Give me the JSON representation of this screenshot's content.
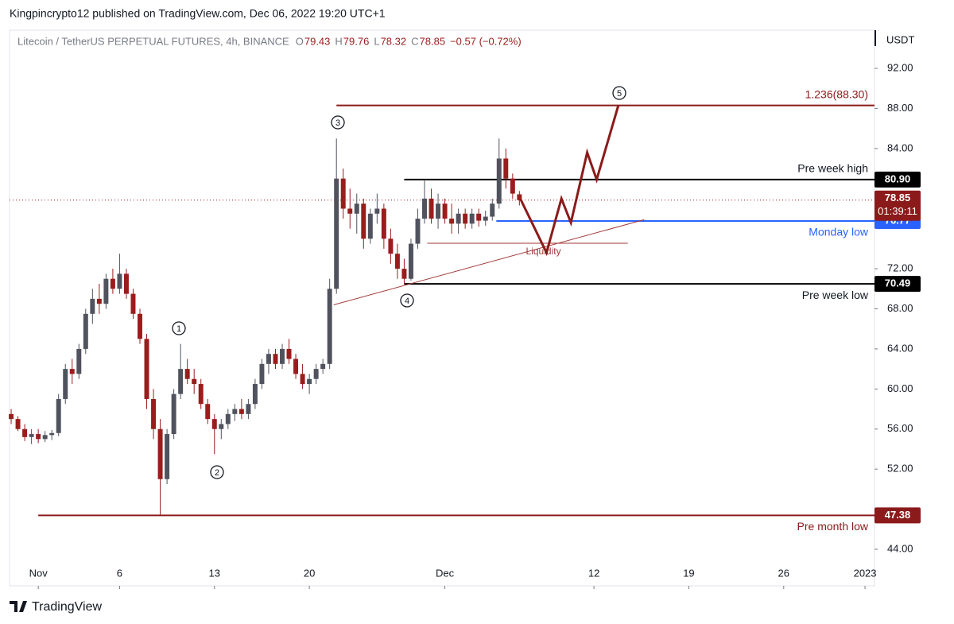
{
  "header": {
    "publisher": "Kingpincrypto12 published on TradingView.com, Dec 06, 2022 19:20 UTC+1"
  },
  "footer": {
    "brand": "TradingView"
  },
  "chart_data": {
    "type": "candlestick",
    "symbol": "Litecoin / TetherUS PERPETUAL FUTURES, 4h, BINANCE",
    "ohlc_prefixes": [
      "O",
      "H",
      "L",
      "C"
    ],
    "change": "−0.57 (−0.72%)",
    "y_axis_label": "USDT",
    "countdown": "01:39:11",
    "up_color": "#50535e",
    "down_color": "#9b1c1c",
    "x": [
      -2,
      -1.5,
      -1,
      -0.5,
      0,
      0.5,
      1,
      1.5,
      2,
      2.5,
      3,
      3.5,
      4,
      4.5,
      5,
      5.5,
      6,
      6.5,
      7,
      7.5,
      8,
      8.5,
      9,
      9.5,
      10,
      10.5,
      11,
      11.5,
      12,
      12.5,
      13,
      13.5,
      14,
      14.5,
      15,
      15.5,
      16,
      16.5,
      17,
      17.5,
      18,
      18.5,
      19,
      19.5,
      20,
      20.5,
      21,
      21.5,
      22,
      22.5,
      23,
      23.5,
      24,
      24.5,
      25,
      25.5,
      26,
      26.5,
      27,
      27.5,
      28,
      28.5,
      29,
      29.5,
      30,
      30.5,
      31,
      31.5,
      32,
      32.5,
      33,
      33.5,
      34,
      34.5,
      35,
      35.5
    ],
    "open": [
      57.5,
      57,
      56,
      55.2,
      55.5,
      55,
      55.4,
      55.6,
      59,
      62,
      61.5,
      64,
      67.5,
      69,
      68.5,
      71,
      70,
      71.5,
      69.5,
      67.5,
      65,
      59,
      56,
      51,
      55.5,
      59.5,
      62,
      61,
      60.5,
      58.5,
      57,
      56,
      56.5,
      57.5,
      58,
      57.5,
      58.5,
      60.5,
      62.5,
      63.5,
      62.5,
      64,
      63,
      61.5,
      60.5,
      61,
      62,
      62.5,
      70,
      81,
      78,
      77.5,
      78.5,
      75,
      77.5,
      78,
      75,
      73.5,
      72,
      71,
      74.5,
      77,
      79,
      77,
      78.5,
      77,
      76.5,
      77.5,
      76.5,
      77.5,
      76.8,
      77.2,
      78.5,
      83,
      81,
      79.43
    ],
    "high": [
      58,
      57.3,
      56.5,
      56,
      56,
      55.8,
      55.9,
      59.5,
      62.5,
      63,
      64.5,
      68,
      70,
      70.5,
      71.5,
      72,
      73.5,
      72,
      70,
      68,
      65.5,
      60,
      57,
      56,
      60,
      64.5,
      63,
      62,
      61,
      59,
      57.5,
      57,
      58,
      58.5,
      59,
      59,
      61,
      63,
      64,
      64,
      64.5,
      65,
      63.5,
      62.5,
      61.5,
      62.5,
      63,
      71,
      85,
      82,
      80,
      79.5,
      79,
      78,
      79.5,
      78.5,
      76,
      74.5,
      73,
      75,
      78,
      80.9,
      80,
      79.5,
      79,
      78.5,
      78,
      78,
      78,
      78,
      77.8,
      79,
      85,
      84,
      81.5,
      79.76
    ],
    "low": [
      56.5,
      55.8,
      54.8,
      54.5,
      54.6,
      54.7,
      54.9,
      55.3,
      58.5,
      60.5,
      61,
      63.5,
      66.5,
      67.5,
      68,
      69.5,
      69.5,
      69,
      67,
      64.5,
      58,
      55,
      47.38,
      50.5,
      55,
      59,
      60.5,
      59.5,
      58,
      56.5,
      53.5,
      55,
      56,
      56.8,
      57,
      57,
      58,
      60,
      61.5,
      62,
      62,
      62.5,
      61,
      60,
      59.5,
      60.5,
      61.5,
      62,
      69.5,
      77,
      76,
      75.5,
      74,
      74.5,
      76.5,
      74,
      72.5,
      71,
      70.49,
      70.8,
      74,
      76.5,
      76.5,
      76,
      76.5,
      75.5,
      75.5,
      76,
      76,
      76.2,
      76.3,
      76.8,
      78,
      80,
      79,
      78.32
    ],
    "close": [
      57,
      56,
      55.2,
      55.5,
      55,
      55.4,
      55.6,
      59,
      62,
      61.5,
      64,
      67.5,
      69,
      68.5,
      71,
      70,
      71.5,
      69.5,
      67.5,
      65,
      59,
      56,
      51,
      55.5,
      59.5,
      62,
      61,
      60.5,
      58.5,
      57,
      56,
      56.5,
      57.5,
      58,
      57.5,
      58.5,
      60.5,
      62.5,
      63.5,
      62.5,
      64,
      63,
      61.5,
      60.5,
      61,
      62,
      62.5,
      70,
      81,
      78,
      77.5,
      78.5,
      75,
      77.5,
      78,
      75,
      73.5,
      72,
      71,
      74.5,
      77,
      79,
      77,
      78.5,
      77,
      76.5,
      77.5,
      76.5,
      77.5,
      76.8,
      77.2,
      78.5,
      83,
      81,
      79.5,
      78.85
    ],
    "xlim": [
      -2.12,
      61.7
    ],
    "ylim": [
      40.35,
      95.81
    ],
    "xticks": [
      {
        "value": 0,
        "label": "Nov"
      },
      6,
      13,
      20,
      {
        "value": 30,
        "label": "Dec"
      },
      {
        "value": 41,
        "label": "12"
      },
      {
        "value": 48,
        "label": "19"
      },
      {
        "value": 55,
        "label": "26"
      },
      {
        "value": 61,
        "label": "2023"
      }
    ],
    "yticks": [
      {
        "value": 92,
        "label": "92.00"
      },
      {
        "value": 88,
        "label": "88.00"
      },
      {
        "value": 84,
        "label": "84.00"
      },
      {
        "value": 72,
        "label": "72.00"
      },
      {
        "value": 68,
        "label": "68.00"
      },
      {
        "value": 64,
        "label": "64.00"
      },
      {
        "value": 60,
        "label": "60.00"
      },
      {
        "value": 56,
        "label": "56.00"
      },
      {
        "value": 52,
        "label": "52.00"
      },
      {
        "value": 44,
        "label": "44.00"
      }
    ],
    "levels": [
      {
        "price": 88.3,
        "text": "1.236(88.30)",
        "color": "#8b1a1a",
        "start": 22,
        "text_pos": "above",
        "badge": false
      },
      {
        "price": {
          "value": 80.9,
          "label": "80.90"
        },
        "text": "Pre week high",
        "color": "#000000",
        "start": 27,
        "text_pos": "above",
        "badge": true
      },
      {
        "price": 76.77,
        "text": "Monday low",
        "color": "#2962ff",
        "start": 33.8,
        "text_pos": "below",
        "badge": true
      },
      {
        "price": 70.49,
        "text": "Pre week low",
        "color": "#000000",
        "start": 27,
        "text_pos": "below",
        "badge": true
      },
      {
        "price": 47.38,
        "text": "Pre month low",
        "color": "#8b1a1a",
        "start": 0,
        "text_pos": "below",
        "badge": true
      }
    ],
    "liquidity": {
      "price": 74.55,
      "text": "Liquidity",
      "start": 28.7,
      "end": 43.5,
      "color": "#a33a3a"
    },
    "trendline": {
      "x": [
        21.8,
        44.7
      ],
      "y": [
        68.4,
        76.9
      ],
      "color": "#a33a3a"
    },
    "projection": {
      "x": [
        35.6,
        37.5,
        38.6,
        39.3,
        40.5,
        41.2,
        42.8
      ],
      "y": [
        78.9,
        73.6,
        79.0,
        76.6,
        83.6,
        80.9,
        88.3
      ],
      "color": "#8b1a1a"
    },
    "waves": [
      "1",
      "2",
      "3",
      "4",
      "5"
    ]
  }
}
